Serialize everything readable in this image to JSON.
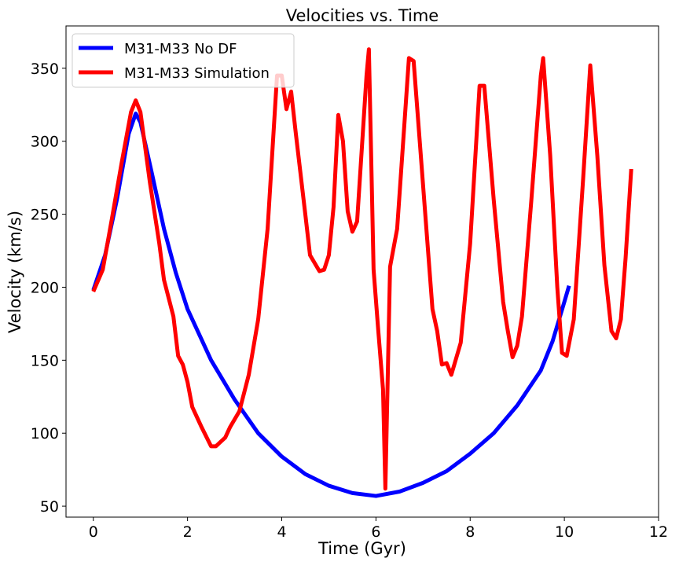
{
  "chart_data": {
    "type": "line",
    "title": "Velocities vs. Time",
    "xlabel": "Time (Gyr)",
    "ylabel": "Velocity (km/s)",
    "xlim": [
      -0.58,
      12
    ],
    "ylim": [
      42.5,
      379
    ],
    "xticks": [
      0,
      2,
      4,
      6,
      8,
      10,
      12
    ],
    "yticks": [
      50,
      100,
      150,
      200,
      250,
      300,
      350
    ],
    "grid": false,
    "legend": "upper left",
    "series": [
      {
        "name": "M31-M33 No DF",
        "color": "#0000ff",
        "x": [
          0,
          0.25,
          0.5,
          0.75,
          0.9,
          1.0,
          1.25,
          1.5,
          1.75,
          2.0,
          2.5,
          3.0,
          3.5,
          4.0,
          4.5,
          5.0,
          5.5,
          6.0,
          6.5,
          7.0,
          7.5,
          8.0,
          8.5,
          9.0,
          9.5,
          9.75,
          10.0,
          10.1
        ],
        "values": [
          198,
          222,
          260,
          305,
          319,
          313,
          277,
          240,
          210,
          185,
          150,
          123,
          100,
          84,
          72,
          64,
          59,
          57,
          60,
          66,
          74,
          86,
          100,
          119,
          143,
          163,
          190,
          201
        ]
      },
      {
        "name": "M31-M33 Simulation",
        "color": "#ff0000",
        "x": [
          0,
          0.2,
          0.4,
          0.6,
          0.8,
          0.9,
          1.0,
          1.2,
          1.4,
          1.5,
          1.7,
          1.8,
          1.9,
          2.0,
          2.1,
          2.3,
          2.5,
          2.6,
          2.7,
          2.8,
          2.9,
          3.1,
          3.3,
          3.5,
          3.7,
          3.9,
          4.0,
          4.1,
          4.2,
          4.3,
          4.5,
          4.6,
          4.8,
          4.9,
          5.0,
          5.1,
          5.2,
          5.3,
          5.4,
          5.5,
          5.6,
          5.8,
          5.85,
          5.95,
          6.05,
          6.15,
          6.2,
          6.3,
          6.45,
          6.6,
          6.7,
          6.8,
          7.0,
          7.2,
          7.3,
          7.4,
          7.5,
          7.6,
          7.8,
          8.0,
          8.2,
          8.3,
          8.5,
          8.7,
          8.8,
          8.9,
          9.0,
          9.1,
          9.3,
          9.5,
          9.55,
          9.7,
          9.85,
          9.95,
          10.05,
          10.2,
          10.4,
          10.55,
          10.7,
          10.85,
          11.0,
          11.1,
          11.2,
          11.3,
          11.42
        ],
        "values": [
          197,
          212,
          248,
          285,
          320,
          328,
          320,
          272,
          230,
          205,
          180,
          153,
          147,
          135,
          118,
          104,
          91,
          91,
          94,
          97,
          104,
          115,
          140,
          178,
          240,
          345,
          345,
          322,
          334,
          305,
          250,
          222,
          211,
          212,
          222,
          255,
          318,
          300,
          252,
          238,
          245,
          345,
          363,
          212,
          170,
          130,
          62,
          214,
          240,
          310,
          357,
          355,
          270,
          185,
          170,
          147,
          148,
          140,
          162,
          230,
          338,
          338,
          260,
          190,
          170,
          152,
          160,
          180,
          260,
          345,
          357,
          290,
          200,
          155,
          153,
          178,
          275,
          352,
          290,
          215,
          170,
          165,
          178,
          220,
          281
        ]
      }
    ]
  }
}
